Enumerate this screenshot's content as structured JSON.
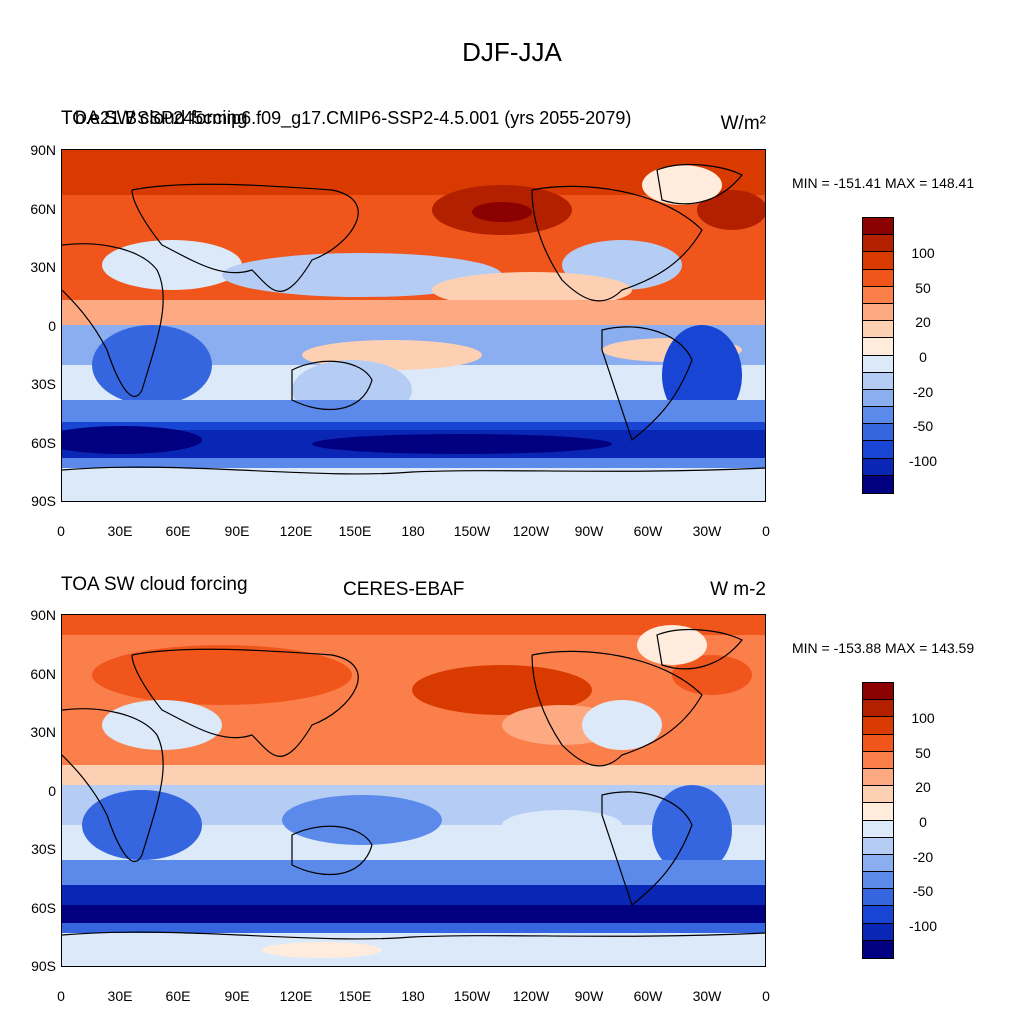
{
  "main_title": "DJF-JJA",
  "panels": [
    {
      "left_title": "TOA SW cloud forcing",
      "center_title": "b.e21.BSSP245cmip6.f09_g17.CMIP6-SSP2-4.5.001 (yrs 2055-2079)",
      "units": "W/m²",
      "minmax": "MIN = -151.41 MAX = 148.41"
    },
    {
      "left_title": "TOA SW cloud forcing",
      "center_title": "CERES-EBAF",
      "units": "W m-2",
      "minmax": "MIN = -153.88 MAX = 143.59"
    }
  ],
  "lat_labels": [
    "90N",
    "60N",
    "30N",
    "0",
    "30S",
    "60S",
    "90S"
  ],
  "lon_labels": [
    "0",
    "30E",
    "60E",
    "90E",
    "120E",
    "150E",
    "180",
    "150W",
    "120W",
    "90W",
    "60W",
    "30W",
    "0"
  ],
  "colorbar": {
    "colors": [
      "#8b0000",
      "#b22000",
      "#d93a00",
      "#f0561c",
      "#fb7f4a",
      "#fdaa82",
      "#fdd0b4",
      "#ffecdd",
      "#dce9f8",
      "#b5cdf5",
      "#8aaef0",
      "#5c8aea",
      "#3566e0",
      "#1845d4",
      "#0a26b4",
      "#000080"
    ],
    "labels": [
      "100",
      "50",
      "20",
      "0",
      "-20",
      "-50",
      "-100"
    ]
  },
  "chart_data": [
    {
      "type": "heatmap",
      "title": "DJF-JJA",
      "left_title": "TOA SW cloud forcing",
      "center_title": "b.e21.BSSP245cmip6.f09_g17.CMIP6-SSP2-4.5.001 (yrs 2055-2079)",
      "units": "W/m²",
      "min": -151.41,
      "max": 148.41,
      "lat_range": [
        -90,
        90
      ],
      "lon_range": [
        0,
        360
      ],
      "colorbar_levels": [
        -100,
        -50,
        -20,
        0,
        20,
        50,
        100
      ]
    },
    {
      "type": "heatmap",
      "title": "DJF-JJA",
      "left_title": "TOA SW cloud forcing",
      "center_title": "CERES-EBAF",
      "units": "W m-2",
      "min": -153.88,
      "max": 143.59,
      "lat_range": [
        -90,
        90
      ],
      "lon_range": [
        0,
        360
      ],
      "colorbar_levels": [
        -100,
        -50,
        -20,
        0,
        20,
        50,
        100
      ]
    }
  ]
}
